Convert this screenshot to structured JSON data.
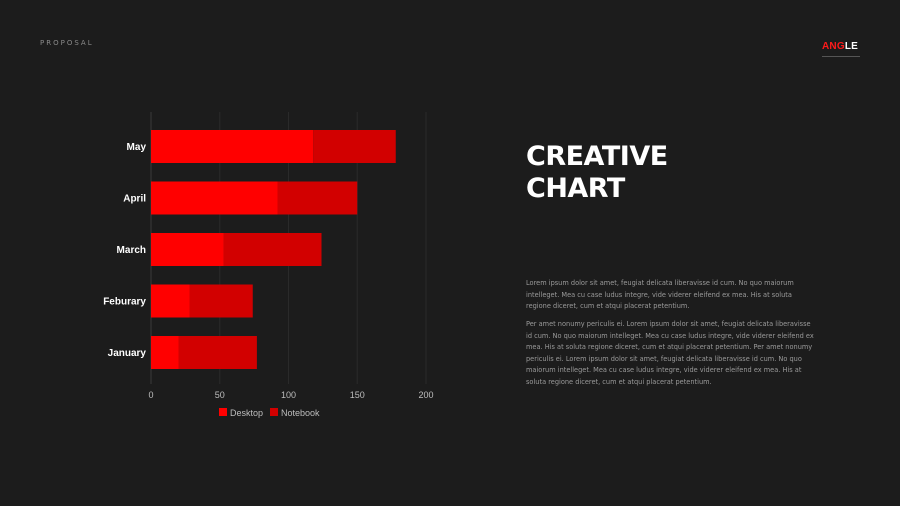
{
  "header": {
    "label": "PROPOSAL"
  },
  "logo": {
    "part1": "ANG",
    "part2": "LE"
  },
  "title": {
    "line1": "CREATIVE",
    "line2": "CHART"
  },
  "body": {
    "paragraph1": "Lorem ipsum dolor sit amet, feugiat delicata liberavisse id cum. No quo maiorum intelleget. Mea cu case ludus integre, vide viderer eleifend ex mea. His at soluta regione diceret, cum et atqui placerat petentium.",
    "paragraph2": "Per amet nonumy periculis ei. Lorem ipsum dolor sit amet, feugiat delicata liberavisse id cum. No quo maiorum intelleget. Mea cu case ludus integre, vide viderer eleifend ex mea. His at soluta regione diceret, cum et atqui placerat petentium. Per amet nonumy periculis ei. Lorem ipsum dolor sit amet, feugiat delicata liberavisse id cum. No quo maiorum intelleget. Mea cu case ludus integre, vide viderer eleifend ex mea. His at soluta regione diceret, cum et atqui placerat petentium."
  },
  "colors": {
    "desktop": "#ff0000",
    "notebook": "#d20000",
    "background": "#1c1c1c"
  },
  "chart_data": {
    "type": "bar",
    "orientation": "horizontal",
    "stacked": true,
    "categories": [
      "May",
      "April",
      "March",
      "Feburary",
      "January"
    ],
    "series": [
      {
        "name": "Desktop",
        "values": [
          118,
          92,
          53,
          28,
          20
        ]
      },
      {
        "name": "Notebook",
        "values": [
          60,
          58,
          71,
          46,
          57
        ]
      }
    ],
    "xlim": [
      0,
      200
    ],
    "xticks": [
      "0",
      "50",
      "100",
      "150",
      "200"
    ],
    "grid": true,
    "legend": "bottom"
  }
}
